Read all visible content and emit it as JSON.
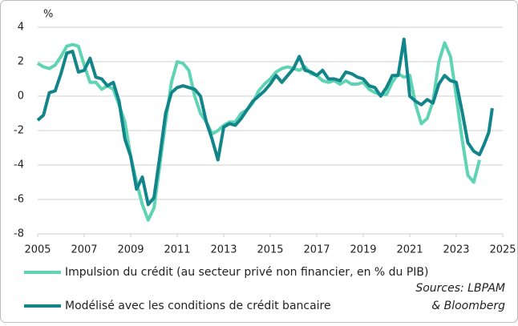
{
  "chart_data": {
    "type": "line",
    "unit_label": "%",
    "sources": [
      "Sources: LBPAM",
      "& Bloomberg"
    ],
    "xlim": [
      2005,
      2025
    ],
    "xticks": [
      2005,
      2007,
      2009,
      2011,
      2013,
      2015,
      2017,
      2019,
      2021,
      2023,
      2025
    ],
    "ylim": [
      -8,
      4
    ],
    "yticks": [
      -8,
      -6,
      -4,
      -2,
      0,
      2,
      4
    ],
    "grid": true,
    "series": [
      {
        "name": "Impulsion du crédit (au secteur privé non financier, en % du PIB)",
        "color": "#5fd4b4",
        "x": [
          2005.0,
          2005.25,
          2005.5,
          2005.75,
          2006.0,
          2006.25,
          2006.5,
          2006.75,
          2007.0,
          2007.25,
          2007.5,
          2007.75,
          2008.0,
          2008.25,
          2008.5,
          2008.75,
          2009.0,
          2009.25,
          2009.5,
          2009.75,
          2010.0,
          2010.25,
          2010.5,
          2010.75,
          2011.0,
          2011.25,
          2011.5,
          2011.75,
          2012.0,
          2012.25,
          2012.5,
          2012.75,
          2013.0,
          2013.25,
          2013.5,
          2013.75,
          2014.0,
          2014.25,
          2014.5,
          2014.75,
          2015.0,
          2015.25,
          2015.5,
          2015.75,
          2016.0,
          2016.25,
          2016.5,
          2016.75,
          2017.0,
          2017.25,
          2017.5,
          2017.75,
          2018.0,
          2018.25,
          2018.5,
          2018.75,
          2019.0,
          2019.25,
          2019.5,
          2019.75,
          2020.0,
          2020.25,
          2020.5,
          2020.75,
          2021.0,
          2021.25,
          2021.5,
          2021.75,
          2022.0,
          2022.25,
          2022.5,
          2022.75,
          2023.0,
          2023.25,
          2023.5,
          2023.75,
          2024.0
        ],
        "values": [
          1.9,
          1.7,
          1.6,
          1.8,
          2.3,
          2.9,
          3.0,
          2.9,
          1.8,
          0.8,
          0.8,
          0.4,
          0.6,
          0.4,
          -0.5,
          -1.5,
          -3.5,
          -5.0,
          -6.3,
          -7.2,
          -6.5,
          -4.0,
          -1.5,
          0.8,
          2.0,
          1.9,
          1.5,
          0.0,
          -1.0,
          -1.5,
          -2.2,
          -2.0,
          -1.7,
          -1.5,
          -1.5,
          -1.0,
          -0.8,
          -0.4,
          0.3,
          0.7,
          1.0,
          1.4,
          1.6,
          1.7,
          1.6,
          1.5,
          1.7,
          1.3,
          1.2,
          0.9,
          0.8,
          0.9,
          0.7,
          0.9,
          0.7,
          0.7,
          0.8,
          0.4,
          0.2,
          0.1,
          0.1,
          0.8,
          1.3,
          1.1,
          1.2,
          -0.5,
          -1.6,
          -1.3,
          -0.3,
          2.0,
          3.1,
          2.3,
          0.0,
          -2.5,
          -4.6,
          -5.0,
          -3.7
        ]
      },
      {
        "name": "Modélisé avec les conditions de crédit bancaire",
        "color": "#12858a",
        "x": [
          2005.0,
          2005.25,
          2005.5,
          2005.75,
          2006.0,
          2006.25,
          2006.5,
          2006.75,
          2007.0,
          2007.25,
          2007.5,
          2007.75,
          2008.0,
          2008.25,
          2008.5,
          2008.75,
          2009.0,
          2009.25,
          2009.5,
          2009.75,
          2010.0,
          2010.25,
          2010.5,
          2010.75,
          2011.0,
          2011.25,
          2011.5,
          2011.75,
          2012.0,
          2012.25,
          2012.5,
          2012.75,
          2013.0,
          2013.25,
          2013.5,
          2013.75,
          2014.0,
          2014.25,
          2014.5,
          2014.75,
          2015.0,
          2015.25,
          2015.5,
          2015.75,
          2016.0,
          2016.25,
          2016.5,
          2016.75,
          2017.0,
          2017.25,
          2017.5,
          2017.75,
          2018.0,
          2018.25,
          2018.5,
          2018.75,
          2019.0,
          2019.25,
          2019.5,
          2019.75,
          2020.0,
          2020.25,
          2020.5,
          2020.75,
          2021.0,
          2021.25,
          2021.5,
          2021.75,
          2022.0,
          2022.25,
          2022.5,
          2022.75,
          2023.0,
          2023.25,
          2023.5,
          2023.75,
          2024.0,
          2024.2,
          2024.4,
          2024.55
        ],
        "values": [
          -1.4,
          -1.1,
          0.2,
          0.3,
          1.3,
          2.5,
          2.6,
          1.4,
          1.5,
          2.2,
          1.1,
          1.0,
          0.6,
          0.8,
          -0.3,
          -2.5,
          -3.5,
          -5.4,
          -4.7,
          -6.3,
          -5.9,
          -3.5,
          -1.0,
          0.2,
          0.5,
          0.6,
          0.5,
          0.4,
          0.0,
          -1.5,
          -2.5,
          -3.7,
          -1.8,
          -1.6,
          -1.7,
          -1.3,
          -0.8,
          -0.3,
          0.0,
          0.3,
          0.7,
          1.2,
          0.8,
          1.2,
          1.6,
          2.3,
          1.5,
          1.4,
          1.2,
          1.5,
          1.0,
          1.0,
          0.9,
          1.4,
          1.3,
          1.1,
          1.0,
          0.6,
          0.5,
          0.0,
          0.5,
          1.2,
          1.2,
          3.3,
          0.0,
          -0.3,
          -0.5,
          -0.2,
          -0.4,
          0.7,
          1.2,
          0.9,
          0.8,
          -0.9,
          -2.7,
          -3.2,
          -3.4,
          -2.8,
          -2.1,
          -0.7
        ]
      }
    ]
  }
}
